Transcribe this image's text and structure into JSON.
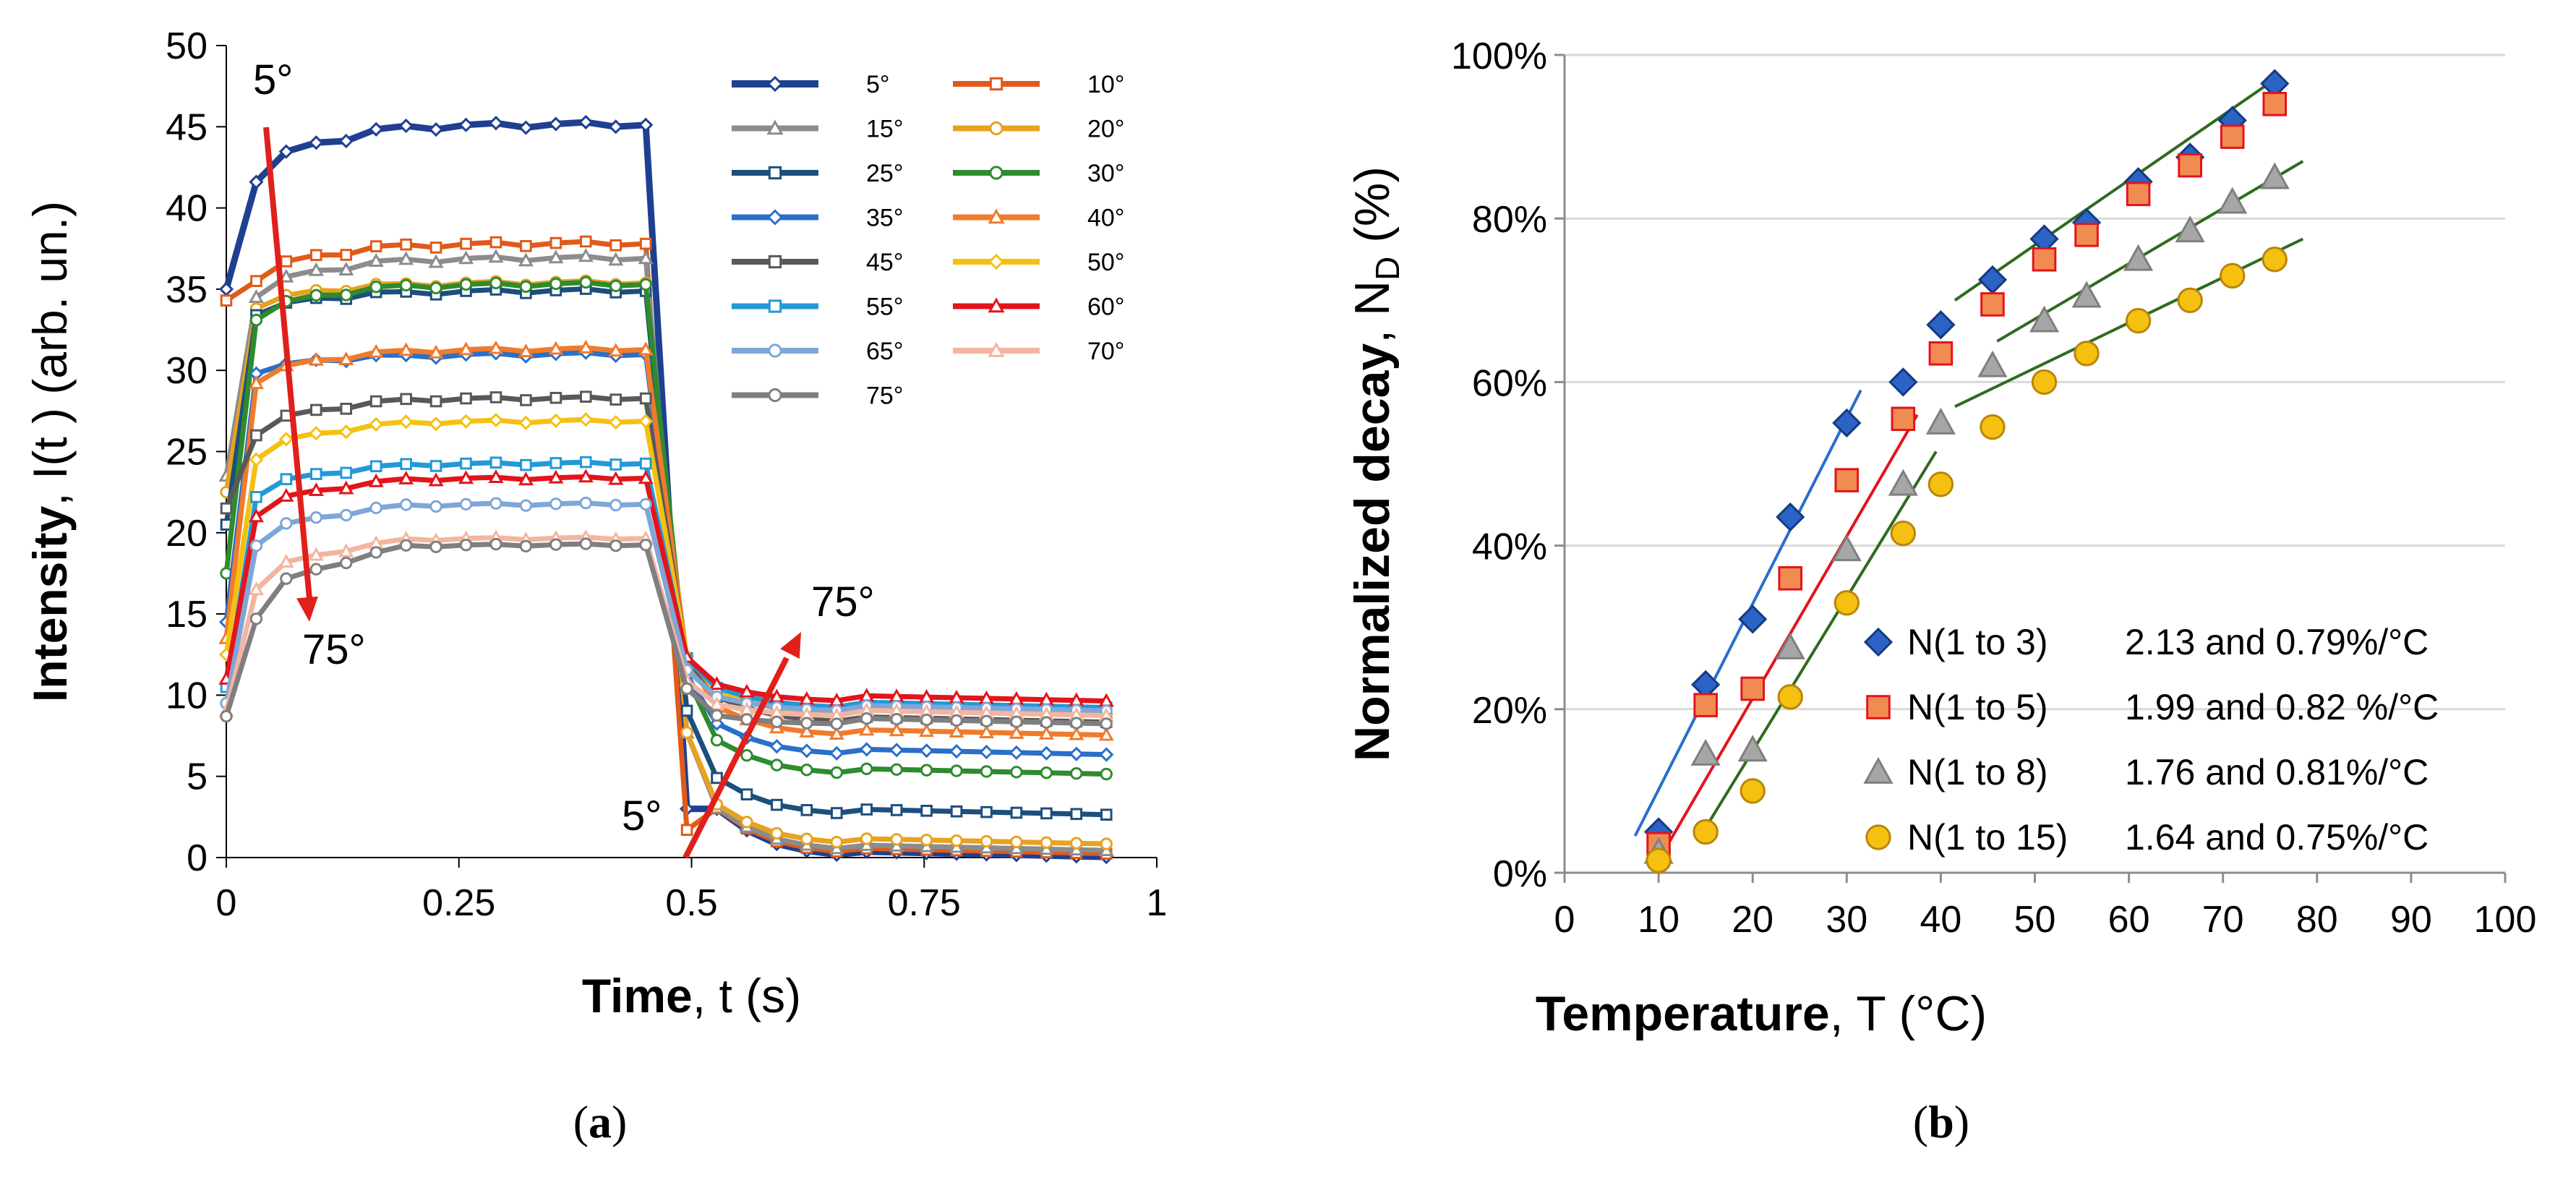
{
  "colors": {
    "axis": "#000000",
    "grid": "#d9d9d9",
    "arrow": "#e0201b"
  },
  "panel_a": {
    "caption": {
      "open": "(",
      "letter": "a",
      "close": ")"
    },
    "annotations": {
      "top_start": "5°",
      "top_end": "75°",
      "bottom_start": "5°",
      "bottom_end": "75°"
    }
  },
  "panel_b": {
    "caption": {
      "open": "(",
      "letter": "b",
      "close": ")"
    }
  },
  "chart_data": [
    {
      "type": "line",
      "ylabel_bold": "Intensity",
      "ylabel_rest": ", I(t )    (arb. un.)",
      "xlabel_bold": "Time",
      "xlabel_rest": ", t  (s)",
      "xlim": [
        0,
        1
      ],
      "ylim": [
        0,
        50
      ],
      "x_ticks": [
        "0",
        "0.25",
        "0.5",
        "0.75",
        "1"
      ],
      "x_tick_values": [
        0,
        0.25,
        0.5,
        0.75,
        1
      ],
      "y_ticks": [
        "0",
        "5",
        "10",
        "15",
        "20",
        "25",
        "30",
        "35",
        "40",
        "45",
        "50"
      ],
      "y_tick_values": [
        0,
        5,
        10,
        15,
        20,
        25,
        30,
        35,
        40,
        45,
        50
      ],
      "grid": false,
      "legend_position": "top-right",
      "time_step": 0.0322,
      "series": [
        {
          "name": "5°",
          "color": "#1f3f91",
          "marker": "diamond",
          "plateau": 45.0,
          "start": 35.0,
          "second": 41.6,
          "low": 0.0
        },
        {
          "name": "10°",
          "color": "#e05a1b",
          "marker": "square",
          "plateau": 37.7,
          "start": 34.3,
          "second": 35.5,
          "low": 0.2
        },
        {
          "name": "15°",
          "color": "#8c8c8c",
          "marker": "triangle",
          "plateau": 36.8,
          "start": 23.5,
          "second": 34.5,
          "low": 0.4
        },
        {
          "name": "20°",
          "color": "#e8a21f",
          "marker": "circle",
          "plateau": 35.3,
          "start": 22.5,
          "second": 33.8,
          "low": 0.8
        },
        {
          "name": "25°",
          "color": "#1d4f7d",
          "marker": "square",
          "plateau": 34.8,
          "start": 20.5,
          "second": 33.4,
          "low": 2.6
        },
        {
          "name": "30°",
          "color": "#2e8b2e",
          "marker": "circle",
          "plateau": 35.2,
          "start": 17.5,
          "second": 33.1,
          "low": 5.1
        },
        {
          "name": "35°",
          "color": "#2a6fc9",
          "marker": "diamond",
          "plateau": 30.9,
          "start": 14.5,
          "second": 29.8,
          "low": 6.3
        },
        {
          "name": "40°",
          "color": "#f07b2d",
          "marker": "triangle",
          "plateau": 31.2,
          "start": 13.5,
          "second": 29.2,
          "low": 7.5
        },
        {
          "name": "45°",
          "color": "#595959",
          "marker": "square",
          "plateau": 28.2,
          "start": 21.5,
          "second": 26.0,
          "low": 8.3
        },
        {
          "name": "50°",
          "color": "#f5c010",
          "marker": "diamond",
          "plateau": 26.8,
          "start": 12.5,
          "second": 24.5,
          "low": 8.8
        },
        {
          "name": "55°",
          "color": "#2499d6",
          "marker": "square",
          "plateau": 24.2,
          "start": 10.5,
          "second": 22.2,
          "low": 9.2
        },
        {
          "name": "60°",
          "color": "#e3141b",
          "marker": "triangle",
          "plateau": 23.3,
          "start": 11.0,
          "second": 21.0,
          "low": 9.6
        },
        {
          "name": "65°",
          "color": "#7ea6d8",
          "marker": "circle",
          "plateau": 21.7,
          "start": 9.5,
          "second": 19.2,
          "low": 9.0
        },
        {
          "name": "70°",
          "color": "#f4b5a0",
          "marker": "triangle",
          "plateau": 19.6,
          "start": 9.0,
          "second": 16.5,
          "low": 8.7
        },
        {
          "name": "75°",
          "color": "#7f7f7f",
          "marker": "circle",
          "plateau": 19.2,
          "start": 8.7,
          "second": 14.7,
          "low": 8.2
        }
      ]
    },
    {
      "type": "scatter",
      "ylabel_bold": "Normalized decay",
      "ylabel_rest": ", N",
      "ylabel_sub": "D",
      "ylabel_unit": "  (%)",
      "xlabel_bold": "Temperature",
      "xlabel_rest": ", T  (°C)",
      "xlim": [
        0,
        100
      ],
      "ylim": [
        0,
        100
      ],
      "x_ticks": [
        "0",
        "10",
        "20",
        "30",
        "40",
        "50",
        "60",
        "70",
        "80",
        "90",
        "100"
      ],
      "x_tick_values": [
        0,
        10,
        20,
        30,
        40,
        50,
        60,
        70,
        80,
        90,
        100
      ],
      "y_ticks": [
        "0%",
        "20%",
        "40%",
        "60%",
        "80%",
        "100%"
      ],
      "y_tick_values": [
        0,
        20,
        40,
        60,
        80,
        100
      ],
      "grid": true,
      "legend_position": "bottom-right",
      "fit_colors": [
        "#2a6fc9",
        "#e3141b",
        "#2e6b1f"
      ],
      "series": [
        {
          "name": "N(1 to 3)",
          "slopes": "2.13 and 0.79%/°C",
          "marker": "diamond",
          "color": "#2b63c6",
          "stroke": "#143a80",
          "x": [
            10,
            15,
            20,
            24,
            30,
            36,
            40,
            45.5,
            51,
            55.5,
            61,
            66.5,
            71,
            75.5
          ],
          "y": [
            5,
            23,
            31,
            43.5,
            55,
            60,
            67,
            72.5,
            77.5,
            79.5,
            84.5,
            87.5,
            92,
            96.5
          ],
          "fit_low": {
            "x": [
              7.5,
              31.5
            ],
            "y": [
              4.5,
              59
            ]
          },
          "fit_high": {
            "x": [
              41.5,
              75.5
            ],
            "y": [
              70,
              97
            ]
          }
        },
        {
          "name": "N(1 to 5)",
          "slopes": "1.99  and 0.82 %/°C",
          "marker": "square",
          "color": "#f08c52",
          "stroke": "#e3141b",
          "x": [
            10,
            15,
            20,
            24,
            30,
            36,
            40,
            45.5,
            51,
            55.5,
            61,
            66.5,
            71,
            75.5
          ],
          "y": [
            3.5,
            20.5,
            22.5,
            36,
            48,
            55.5,
            63.5,
            69.5,
            75,
            78,
            83,
            86.5,
            90,
            94
          ],
          "fit_low": {
            "x": [
              10,
              37.5
            ],
            "y": [
              1.5,
              56
            ]
          }
        },
        {
          "name": "N(1 to 8)",
          "slopes": "1.76 and 0.81%/°C",
          "marker": "triangle",
          "color": "#a6a6a6",
          "stroke": "#7f7f7f",
          "x": [
            10,
            15,
            20,
            24,
            30,
            36,
            40,
            45.5,
            51,
            55.5,
            61,
            66.5,
            71,
            75.5
          ],
          "y": [
            2.5,
            14.5,
            15,
            27.5,
            39.5,
            47.5,
            55,
            62,
            67.5,
            70.5,
            75,
            78.5,
            82,
            85
          ],
          "fit_low": {
            "x": [
              15,
              39.5
            ],
            "y": [
              5.5,
              51.5
            ]
          },
          "fit_high": {
            "x": [
              46,
              78.5
            ],
            "y": [
              65,
              87
            ]
          }
        },
        {
          "name": "N(1 to 15)",
          "slopes": "1.64 and 0.75%/°C",
          "marker": "circle",
          "color": "#f5c010",
          "stroke": "#b8860b",
          "x": [
            10,
            15,
            20,
            24,
            30,
            36,
            40,
            45.5,
            51,
            55.5,
            61,
            66.5,
            71,
            75.5
          ],
          "y": [
            1.5,
            5,
            10,
            21.5,
            33,
            41.5,
            47.5,
            54.5,
            60,
            63.5,
            67.5,
            70,
            73,
            75
          ],
          "fit_high": {
            "x": [
              41.5,
              78.5
            ],
            "y": [
              57,
              77.5
            ]
          }
        }
      ]
    }
  ]
}
